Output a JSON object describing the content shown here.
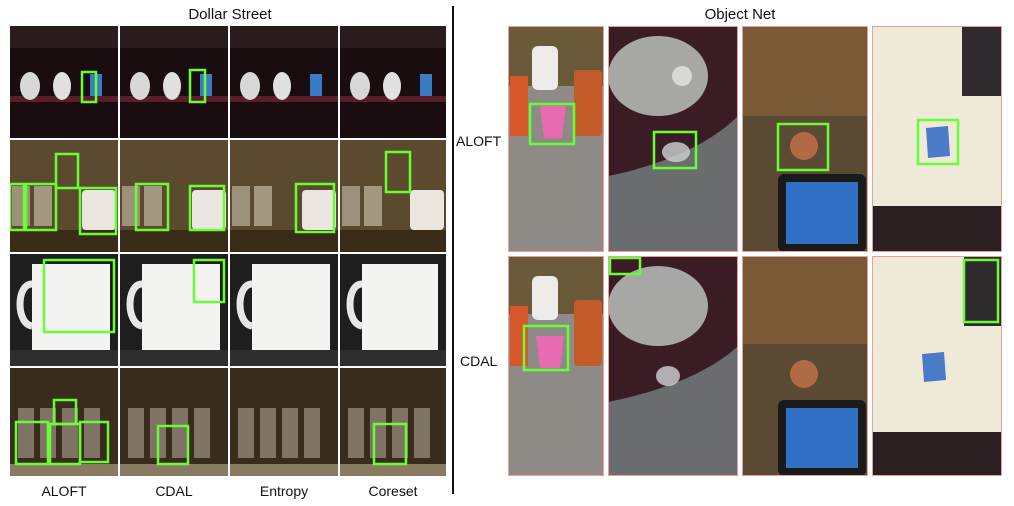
{
  "panels": {
    "dollar_street": {
      "title": "Dollar Street",
      "column_labels": [
        "ALOFT",
        "CDAL",
        "Entropy",
        "Coreset"
      ],
      "rows": [
        {
          "scene": "appliances-on-dark-shelf",
          "methods": [
            {
              "method": "ALOFT",
              "boxes": 1
            },
            {
              "method": "CDAL",
              "boxes": 1
            },
            {
              "method": "Entropy",
              "boxes": 0
            },
            {
              "method": "Coreset",
              "boxes": 0
            }
          ]
        },
        {
          "scene": "glasses-and-mugs-on-shelf",
          "methods": [
            {
              "method": "ALOFT",
              "boxes": 4
            },
            {
              "method": "CDAL",
              "boxes": 2
            },
            {
              "method": "Entropy",
              "boxes": 1
            },
            {
              "method": "Coreset",
              "boxes": 1
            }
          ]
        },
        {
          "scene": "white-pitcher",
          "methods": [
            {
              "method": "ALOFT",
              "boxes": 1
            },
            {
              "method": "CDAL",
              "boxes": 1
            },
            {
              "method": "Entropy",
              "boxes": 0
            },
            {
              "method": "Coreset",
              "boxes": 0
            }
          ]
        },
        {
          "scene": "rows-of-glasses",
          "methods": [
            {
              "method": "ALOFT",
              "boxes": 4
            },
            {
              "method": "CDAL",
              "boxes": 1
            },
            {
              "method": "Entropy",
              "boxes": 0
            },
            {
              "method": "Coreset",
              "boxes": 1
            }
          ]
        }
      ]
    },
    "object_net": {
      "title": "Object Net",
      "row_labels": [
        "ALOFT",
        "CDAL"
      ],
      "columns": [
        {
          "scene": "pink-cup-on-counter"
        },
        {
          "scene": "glass-cup-under-pot"
        },
        {
          "scene": "copper-cup-near-tablet"
        },
        {
          "scene": "blue-cup-on-white-table"
        }
      ]
    }
  },
  "colors": {
    "box_green": "#66ff33",
    "frame_pink": "#e6a0a0",
    "divider": "#111111"
  }
}
